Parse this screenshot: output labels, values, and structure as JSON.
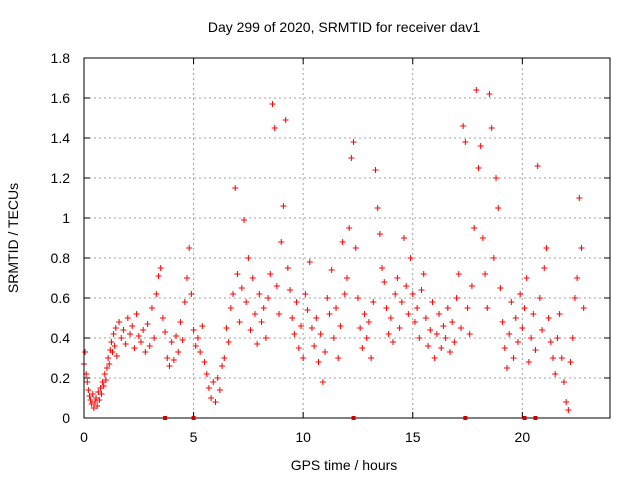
{
  "chart_data": {
    "type": "scatter",
    "title": "Day 299 of 2020, SRMTID for receiver dav1",
    "xlabel": "GPS time / hours",
    "ylabel": "SRMTID / TECUs",
    "xlim": [
      0,
      24
    ],
    "ylim": [
      0,
      1.8
    ],
    "xticks": [
      "0",
      "5",
      "10",
      "15",
      "20"
    ],
    "xtick_values": [
      0,
      5,
      10,
      15,
      20
    ],
    "yticks": [
      "0",
      "0.2",
      "0.4",
      "0.6",
      "0.8",
      "1",
      "1.2",
      "1.4",
      "1.6",
      "1.8"
    ],
    "ytick_values": [
      0,
      0.2,
      0.4,
      0.6,
      0.8,
      1.0,
      1.2,
      1.4,
      1.6,
      1.8
    ],
    "grid": true,
    "marker": "+",
    "color": "#ff0000",
    "gap_color": "#cc0000",
    "data_gaps_at_x": [
      3.7,
      5.0,
      12.3,
      17.4,
      20.1,
      20.6
    ],
    "series": [
      {
        "name": "SRMTID",
        "points": [
          [
            0.0,
            0.27
          ],
          [
            0.05,
            0.33
          ],
          [
            0.1,
            0.22
          ],
          [
            0.15,
            0.18
          ],
          [
            0.2,
            0.14
          ],
          [
            0.25,
            0.11
          ],
          [
            0.3,
            0.09
          ],
          [
            0.35,
            0.07
          ],
          [
            0.4,
            0.12
          ],
          [
            0.45,
            0.05
          ],
          [
            0.5,
            0.08
          ],
          [
            0.55,
            0.1
          ],
          [
            0.6,
            0.06
          ],
          [
            0.65,
            0.13
          ],
          [
            0.7,
            0.09
          ],
          [
            0.75,
            0.15
          ],
          [
            0.8,
            0.12
          ],
          [
            0.85,
            0.18
          ],
          [
            0.9,
            0.16
          ],
          [
            0.95,
            0.22
          ],
          [
            1.0,
            0.19
          ],
          [
            1.05,
            0.25
          ],
          [
            1.1,
            0.3
          ],
          [
            1.15,
            0.27
          ],
          [
            1.2,
            0.34
          ],
          [
            1.25,
            0.38
          ],
          [
            1.3,
            0.33
          ],
          [
            1.35,
            0.42
          ],
          [
            1.4,
            0.36
          ],
          [
            1.45,
            0.45
          ],
          [
            1.5,
            0.31
          ],
          [
            1.6,
            0.48
          ],
          [
            1.7,
            0.4
          ],
          [
            1.8,
            0.44
          ],
          [
            1.9,
            0.37
          ],
          [
            2.0,
            0.5
          ],
          [
            2.1,
            0.42
          ],
          [
            2.2,
            0.46
          ],
          [
            2.3,
            0.35
          ],
          [
            2.4,
            0.52
          ],
          [
            2.5,
            0.41
          ],
          [
            2.6,
            0.38
          ],
          [
            2.7,
            0.44
          ],
          [
            2.8,
            0.33
          ],
          [
            2.9,
            0.47
          ],
          [
            3.0,
            0.36
          ],
          [
            3.1,
            0.55
          ],
          [
            3.2,
            0.4
          ],
          [
            3.3,
            0.62
          ],
          [
            3.4,
            0.71
          ],
          [
            3.5,
            0.75
          ],
          [
            3.6,
            0.5
          ],
          [
            3.7,
            0.43
          ],
          [
            3.8,
            0.3
          ],
          [
            3.9,
            0.26
          ],
          [
            4.0,
            0.38
          ],
          [
            4.1,
            0.29
          ],
          [
            4.2,
            0.41
          ],
          [
            4.3,
            0.33
          ],
          [
            4.4,
            0.48
          ],
          [
            4.5,
            0.39
          ],
          [
            4.6,
            0.58
          ],
          [
            4.7,
            0.7
          ],
          [
            4.8,
            0.85
          ],
          [
            4.9,
            0.62
          ],
          [
            5.0,
            0.44
          ],
          [
            5.1,
            0.36
          ],
          [
            5.2,
            0.4
          ],
          [
            5.3,
            0.33
          ],
          [
            5.4,
            0.46
          ],
          [
            5.5,
            0.28
          ],
          [
            5.6,
            0.22
          ],
          [
            5.7,
            0.15
          ],
          [
            5.8,
            0.1
          ],
          [
            5.9,
            0.18
          ],
          [
            6.0,
            0.08
          ],
          [
            6.1,
            0.2
          ],
          [
            6.2,
            0.14
          ],
          [
            6.3,
            0.26
          ],
          [
            6.4,
            0.3
          ],
          [
            6.5,
            0.45
          ],
          [
            6.6,
            0.38
          ],
          [
            6.7,
            0.55
          ],
          [
            6.8,
            0.62
          ],
          [
            6.9,
            1.15
          ],
          [
            7.0,
            0.72
          ],
          [
            7.1,
            0.48
          ],
          [
            7.2,
            0.65
          ],
          [
            7.3,
            0.99
          ],
          [
            7.4,
            0.58
          ],
          [
            7.5,
            0.8
          ],
          [
            7.6,
            0.44
          ],
          [
            7.7,
            0.7
          ],
          [
            7.8,
            0.52
          ],
          [
            7.9,
            0.37
          ],
          [
            8.0,
            0.62
          ],
          [
            8.1,
            0.48
          ],
          [
            8.2,
            0.55
          ],
          [
            8.3,
            0.4
          ],
          [
            8.4,
            0.6
          ],
          [
            8.5,
            0.72
          ],
          [
            8.6,
            1.57
          ],
          [
            8.7,
            1.45
          ],
          [
            8.8,
            0.66
          ],
          [
            8.9,
            0.52
          ],
          [
            9.0,
            0.88
          ],
          [
            9.1,
            1.06
          ],
          [
            9.2,
            1.49
          ],
          [
            9.3,
            0.75
          ],
          [
            9.4,
            0.64
          ],
          [
            9.5,
            0.5
          ],
          [
            9.6,
            0.42
          ],
          [
            9.7,
            0.58
          ],
          [
            9.8,
            0.35
          ],
          [
            9.9,
            0.46
          ],
          [
            10.0,
            0.3
          ],
          [
            10.1,
            0.62
          ],
          [
            10.2,
            0.54
          ],
          [
            10.3,
            0.78
          ],
          [
            10.4,
            0.45
          ],
          [
            10.5,
            0.36
          ],
          [
            10.6,
            0.5
          ],
          [
            10.7,
            0.28
          ],
          [
            10.8,
            0.42
          ],
          [
            10.9,
            0.18
          ],
          [
            11.0,
            0.33
          ],
          [
            11.1,
            0.6
          ],
          [
            11.2,
            0.52
          ],
          [
            11.3,
            0.74
          ],
          [
            11.4,
            0.4
          ],
          [
            11.5,
            0.55
          ],
          [
            11.6,
            0.3
          ],
          [
            11.7,
            0.46
          ],
          [
            11.8,
            0.88
          ],
          [
            11.9,
            0.62
          ],
          [
            12.0,
            0.7
          ],
          [
            12.1,
            0.95
          ],
          [
            12.2,
            1.3
          ],
          [
            12.3,
            1.38
          ],
          [
            12.4,
            0.85
          ],
          [
            12.5,
            0.6
          ],
          [
            12.6,
            0.45
          ],
          [
            12.7,
            0.35
          ],
          [
            12.8,
            0.52
          ],
          [
            12.9,
            0.4
          ],
          [
            13.0,
            0.48
          ],
          [
            13.1,
            0.3
          ],
          [
            13.2,
            0.58
          ],
          [
            13.3,
            1.24
          ],
          [
            13.4,
            1.05
          ],
          [
            13.5,
            0.92
          ],
          [
            13.6,
            0.75
          ],
          [
            13.7,
            0.68
          ],
          [
            13.8,
            0.55
          ],
          [
            13.9,
            0.42
          ],
          [
            14.0,
            0.5
          ],
          [
            14.1,
            0.38
          ],
          [
            14.2,
            0.62
          ],
          [
            14.3,
            0.7
          ],
          [
            14.4,
            0.45
          ],
          [
            14.5,
            0.58
          ],
          [
            14.6,
            0.9
          ],
          [
            14.7,
            0.66
          ],
          [
            14.8,
            0.52
          ],
          [
            14.9,
            0.8
          ],
          [
            15.0,
            0.62
          ],
          [
            15.1,
            0.48
          ],
          [
            15.2,
            0.55
          ],
          [
            15.3,
            0.4
          ],
          [
            15.4,
            0.64
          ],
          [
            15.5,
            0.72
          ],
          [
            15.6,
            0.5
          ],
          [
            15.7,
            0.36
          ],
          [
            15.8,
            0.44
          ],
          [
            15.9,
            0.58
          ],
          [
            16.0,
            0.3
          ],
          [
            16.1,
            0.42
          ],
          [
            16.2,
            0.52
          ],
          [
            16.3,
            0.35
          ],
          [
            16.4,
            0.46
          ],
          [
            16.5,
            0.4
          ],
          [
            16.6,
            0.55
          ],
          [
            16.7,
            0.33
          ],
          [
            16.8,
            0.48
          ],
          [
            16.9,
            0.38
          ],
          [
            17.0,
            0.6
          ],
          [
            17.1,
            0.72
          ],
          [
            17.2,
            0.45
          ],
          [
            17.3,
            1.46
          ],
          [
            17.4,
            1.38
          ],
          [
            17.5,
            0.55
          ],
          [
            17.6,
            0.42
          ],
          [
            17.7,
            0.66
          ],
          [
            17.8,
            0.95
          ],
          [
            17.9,
            1.64
          ],
          [
            18.0,
            1.25
          ],
          [
            18.1,
            1.36
          ],
          [
            18.2,
            0.9
          ],
          [
            18.3,
            0.72
          ],
          [
            18.4,
            0.55
          ],
          [
            18.5,
            1.62
          ],
          [
            18.6,
            1.45
          ],
          [
            18.7,
            0.8
          ],
          [
            18.8,
            1.2
          ],
          [
            18.9,
            1.05
          ],
          [
            19.0,
            0.65
          ],
          [
            19.1,
            0.48
          ],
          [
            19.2,
            0.35
          ],
          [
            19.3,
            0.25
          ],
          [
            19.4,
            0.42
          ],
          [
            19.5,
            0.58
          ],
          [
            19.6,
            0.3
          ],
          [
            19.7,
            0.5
          ],
          [
            19.8,
            0.38
          ],
          [
            19.9,
            0.62
          ],
          [
            20.0,
            0.45
          ],
          [
            20.1,
            0.55
          ],
          [
            20.2,
            0.7
          ],
          [
            20.3,
            0.28
          ],
          [
            20.4,
            0.4
          ],
          [
            20.5,
            0.52
          ],
          [
            20.6,
            0.34
          ],
          [
            20.7,
            1.26
          ],
          [
            20.8,
            0.6
          ],
          [
            20.9,
            0.44
          ],
          [
            21.0,
            0.75
          ],
          [
            21.1,
            0.85
          ],
          [
            21.2,
            0.5
          ],
          [
            21.3,
            0.38
          ],
          [
            21.4,
            0.3
          ],
          [
            21.5,
            0.22
          ],
          [
            21.6,
            0.4
          ],
          [
            21.7,
            0.52
          ],
          [
            21.8,
            0.3
          ],
          [
            21.9,
            0.18
          ],
          [
            22.0,
            0.08
          ],
          [
            22.1,
            0.04
          ],
          [
            22.2,
            0.28
          ],
          [
            22.3,
            0.4
          ],
          [
            22.4,
            0.6
          ],
          [
            22.5,
            0.7
          ],
          [
            22.6,
            1.1
          ],
          [
            22.7,
            0.85
          ],
          [
            22.8,
            0.55
          ]
        ]
      }
    ]
  }
}
